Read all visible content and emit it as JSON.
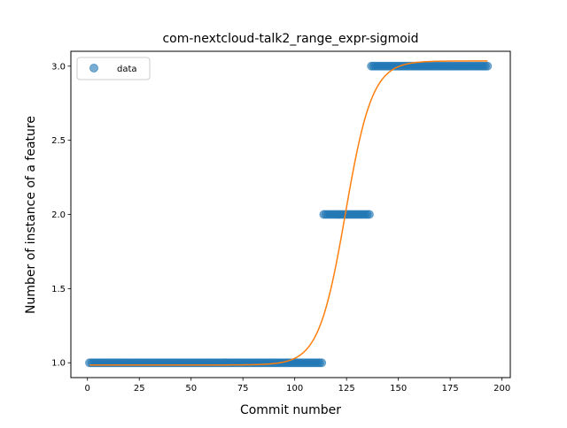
{
  "chart_data": {
    "type": "scatter",
    "title": "com-nextcloud-talk2_range_expr-sigmoid",
    "xlabel": "Commit number",
    "ylabel": "Number of instance of a feature",
    "xlim": [
      -8,
      204
    ],
    "ylim": [
      0.9,
      3.1
    ],
    "xticks": [
      0,
      25,
      50,
      75,
      100,
      125,
      150,
      175,
      200
    ],
    "yticks": [
      1.0,
      1.5,
      2.0,
      2.5,
      3.0
    ],
    "xtick_labels": [
      "0",
      "25",
      "50",
      "75",
      "100",
      "125",
      "150",
      "175",
      "200"
    ],
    "ytick_labels": [
      "1.0",
      "1.5",
      "2.0",
      "2.5",
      "3.0"
    ],
    "grid": false,
    "legend": {
      "position": "upper-left",
      "entries": [
        {
          "label": "data",
          "marker": "circle",
          "color": "#1f77b4"
        }
      ]
    },
    "series": [
      {
        "name": "data",
        "kind": "scatter",
        "color": "#1f77b4",
        "segments": [
          {
            "x_start": 1,
            "x_end": 113,
            "y": 1.0
          },
          {
            "x_start": 114,
            "x_end": 136,
            "y": 2.0
          },
          {
            "x_start": 137,
            "x_end": 193,
            "y": 3.0
          }
        ]
      },
      {
        "kind": "line",
        "color": "#ff7f0e",
        "model": "sigmoid",
        "params": {
          "L": 2.05,
          "k": 0.155,
          "x0": 124.5,
          "b": 0.985
        },
        "x_range": [
          1,
          193
        ]
      }
    ]
  }
}
